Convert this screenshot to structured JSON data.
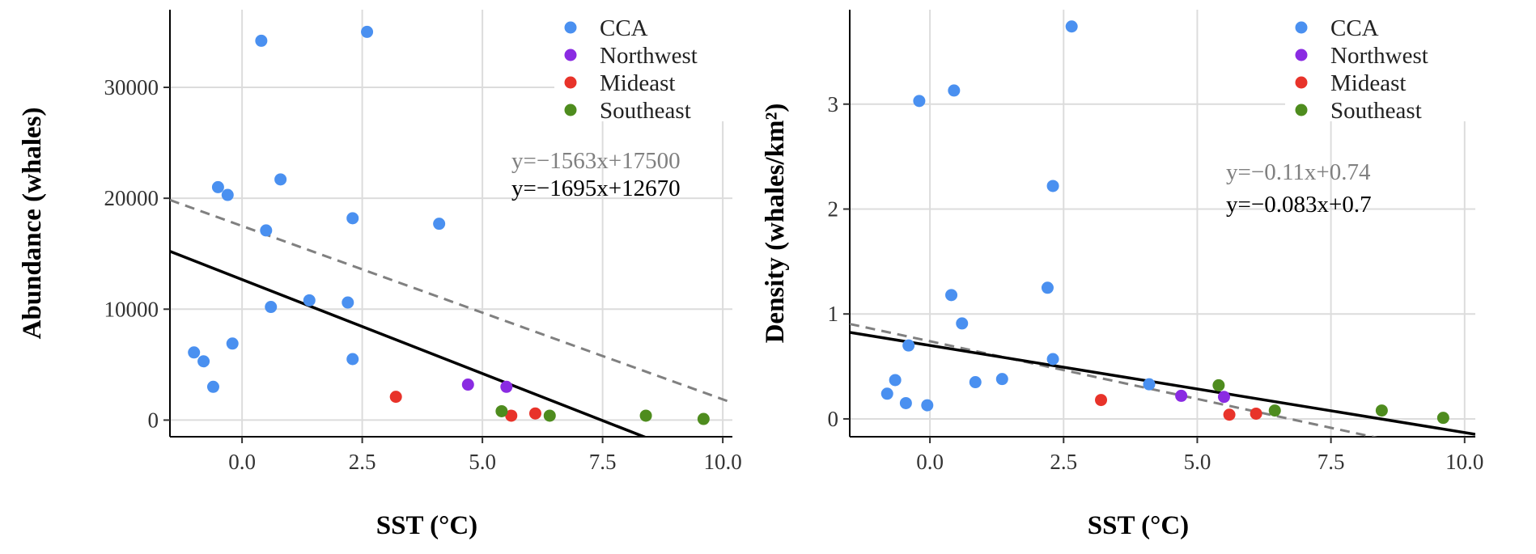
{
  "colors": {
    "CCA": "#4a90f0",
    "Northwest": "#8a2be2",
    "Mideast": "#e8332a",
    "Southeast": "#4e8c1e",
    "grid": "#dcdcdc",
    "dashed_fit": "#808080",
    "solid_fit": "#000000"
  },
  "legend": [
    "CCA",
    "Northwest",
    "Mideast",
    "Southeast"
  ],
  "chart_data": [
    {
      "type": "scatter",
      "title": "",
      "xlabel": "SST (°C)",
      "ylabel": "Abundance (whales)",
      "xlim": [
        -1.5,
        10.2
      ],
      "ylim": [
        -1500,
        37000
      ],
      "xticks": [
        0,
        2.5,
        5,
        7.5,
        10
      ],
      "xtick_labels": [
        "0.0",
        "2.5",
        "5.0",
        "7.5",
        "10.0"
      ],
      "yticks": [
        0,
        10000,
        20000,
        30000
      ],
      "ytick_labels": [
        "0",
        "10000",
        "20000",
        "30000"
      ],
      "grid": true,
      "legend_position": "top-right",
      "series": [
        {
          "name": "CCA",
          "points": [
            [
              0.4,
              34200
            ],
            [
              2.6,
              35000
            ],
            [
              -0.5,
              21000
            ],
            [
              -0.3,
              20300
            ],
            [
              0.8,
              21700
            ],
            [
              0.5,
              17100
            ],
            [
              2.3,
              18200
            ],
            [
              4.1,
              17700
            ],
            [
              1.4,
              10800
            ],
            [
              0.6,
              10200
            ],
            [
              2.2,
              10600
            ],
            [
              -0.2,
              6900
            ],
            [
              -1.0,
              6100
            ],
            [
              -0.8,
              5300
            ],
            [
              2.3,
              5500
            ],
            [
              -0.6,
              3000
            ]
          ]
        },
        {
          "name": "Northwest",
          "points": [
            [
              4.7,
              3200
            ],
            [
              5.5,
              3000
            ]
          ]
        },
        {
          "name": "Mideast",
          "points": [
            [
              3.2,
              2100
            ],
            [
              5.6,
              400
            ],
            [
              6.1,
              600
            ]
          ]
        },
        {
          "name": "Southeast",
          "points": [
            [
              5.4,
              800
            ],
            [
              6.4,
              400
            ],
            [
              8.4,
              400
            ],
            [
              9.6,
              100
            ]
          ]
        }
      ],
      "fits": [
        {
          "label": "y=−1563x+17500",
          "slope": -1563,
          "intercept": 17500,
          "style": "dashed"
        },
        {
          "label": "y=−1695x+12670",
          "slope": -1695,
          "intercept": 12670,
          "style": "solid"
        }
      ]
    },
    {
      "type": "scatter",
      "title": "",
      "xlabel": "SST (°C)",
      "ylabel": "Density (whales/km²)",
      "xlim": [
        -1.5,
        10.2
      ],
      "ylim": [
        -0.17,
        3.9
      ],
      "xticks": [
        0,
        2.5,
        5,
        7.5,
        10
      ],
      "xtick_labels": [
        "0.0",
        "2.5",
        "5.0",
        "7.5",
        "10.0"
      ],
      "yticks": [
        0,
        1,
        2,
        3
      ],
      "ytick_labels": [
        "0",
        "1",
        "2",
        "3"
      ],
      "grid": true,
      "legend_position": "top-right",
      "series": [
        {
          "name": "CCA",
          "points": [
            [
              2.65,
              3.74
            ],
            [
              -0.2,
              3.03
            ],
            [
              0.45,
              3.13
            ],
            [
              2.3,
              2.22
            ],
            [
              2.2,
              1.25
            ],
            [
              0.4,
              1.18
            ],
            [
              0.6,
              0.91
            ],
            [
              -0.4,
              0.7
            ],
            [
              2.3,
              0.57
            ],
            [
              -0.65,
              0.37
            ],
            [
              0.85,
              0.35
            ],
            [
              1.35,
              0.38
            ],
            [
              -0.8,
              0.24
            ],
            [
              -0.45,
              0.15
            ],
            [
              -0.05,
              0.13
            ],
            [
              4.1,
              0.33
            ]
          ]
        },
        {
          "name": "Northwest",
          "points": [
            [
              4.7,
              0.22
            ],
            [
              5.5,
              0.21
            ]
          ]
        },
        {
          "name": "Mideast",
          "points": [
            [
              3.2,
              0.18
            ],
            [
              5.6,
              0.04
            ],
            [
              6.1,
              0.05
            ]
          ]
        },
        {
          "name": "Southeast",
          "points": [
            [
              5.4,
              0.32
            ],
            [
              6.45,
              0.08
            ],
            [
              8.45,
              0.08
            ],
            [
              9.6,
              0.01
            ]
          ]
        }
      ],
      "fits": [
        {
          "label": "y=−0.11x+0.74",
          "slope": -0.11,
          "intercept": 0.74,
          "style": "dashed"
        },
        {
          "label": "y=−0.083x+0.7",
          "slope": -0.083,
          "intercept": 0.7,
          "style": "solid"
        }
      ]
    }
  ]
}
